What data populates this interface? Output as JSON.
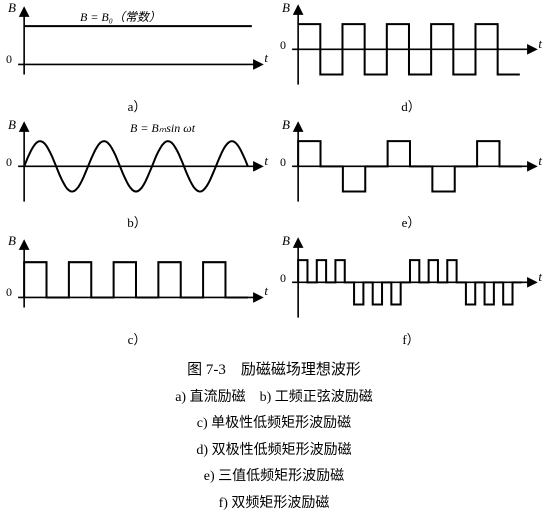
{
  "figure": {
    "title": "图 7-3　励磁磁场理想波形",
    "legend_lines": [
      "a) 直流励磁　b) 工频正弦波励磁",
      "c) 单极性低频矩形波励磁",
      "d) 双极性低频矩形波励磁",
      "e) 三值低频矩形波励磁",
      "f) 双频矩形波励磁"
    ]
  },
  "style": {
    "stroke": "#000000",
    "stroke_width": 1.6,
    "background": "#ffffff",
    "font_family": "SimSun",
    "label_fontsize": 13,
    "annot_fontsize": 12
  },
  "axes": {
    "y_label": "B",
    "x_label": "t",
    "origin_label": "0"
  },
  "plots": {
    "a": {
      "subcaption": "a）",
      "annotation": "B = B₀（常数）",
      "type": "constant",
      "value": 1.0,
      "xrange": [
        0,
        240
      ]
    },
    "b": {
      "subcaption": "b）",
      "annotation": "B = Bₘsin ωt",
      "type": "sine",
      "amplitude": 1.0,
      "cycles": 3.5,
      "xrange": [
        0,
        240
      ]
    },
    "c": {
      "subcaption": "c）",
      "type": "square_unipolar",
      "amplitude": 1.0,
      "pulses": 5,
      "duty": 0.5,
      "xrange": [
        0,
        240
      ]
    },
    "d": {
      "subcaption": "d）",
      "type": "square_bipolar",
      "amplitude": 1.0,
      "cycles": 5,
      "xrange": [
        0,
        240
      ]
    },
    "e": {
      "subcaption": "e）",
      "type": "tri_level",
      "amplitude": 1.0,
      "pattern": [
        1,
        0,
        -1,
        0,
        1,
        0,
        -1,
        0,
        1,
        0
      ],
      "xrange": [
        0,
        240
      ]
    },
    "f": {
      "subcaption": "f）",
      "type": "dual_freq",
      "amplitude": 1.0,
      "groups": 4,
      "pulses_per_group": 3,
      "xrange": [
        0,
        240
      ]
    }
  }
}
